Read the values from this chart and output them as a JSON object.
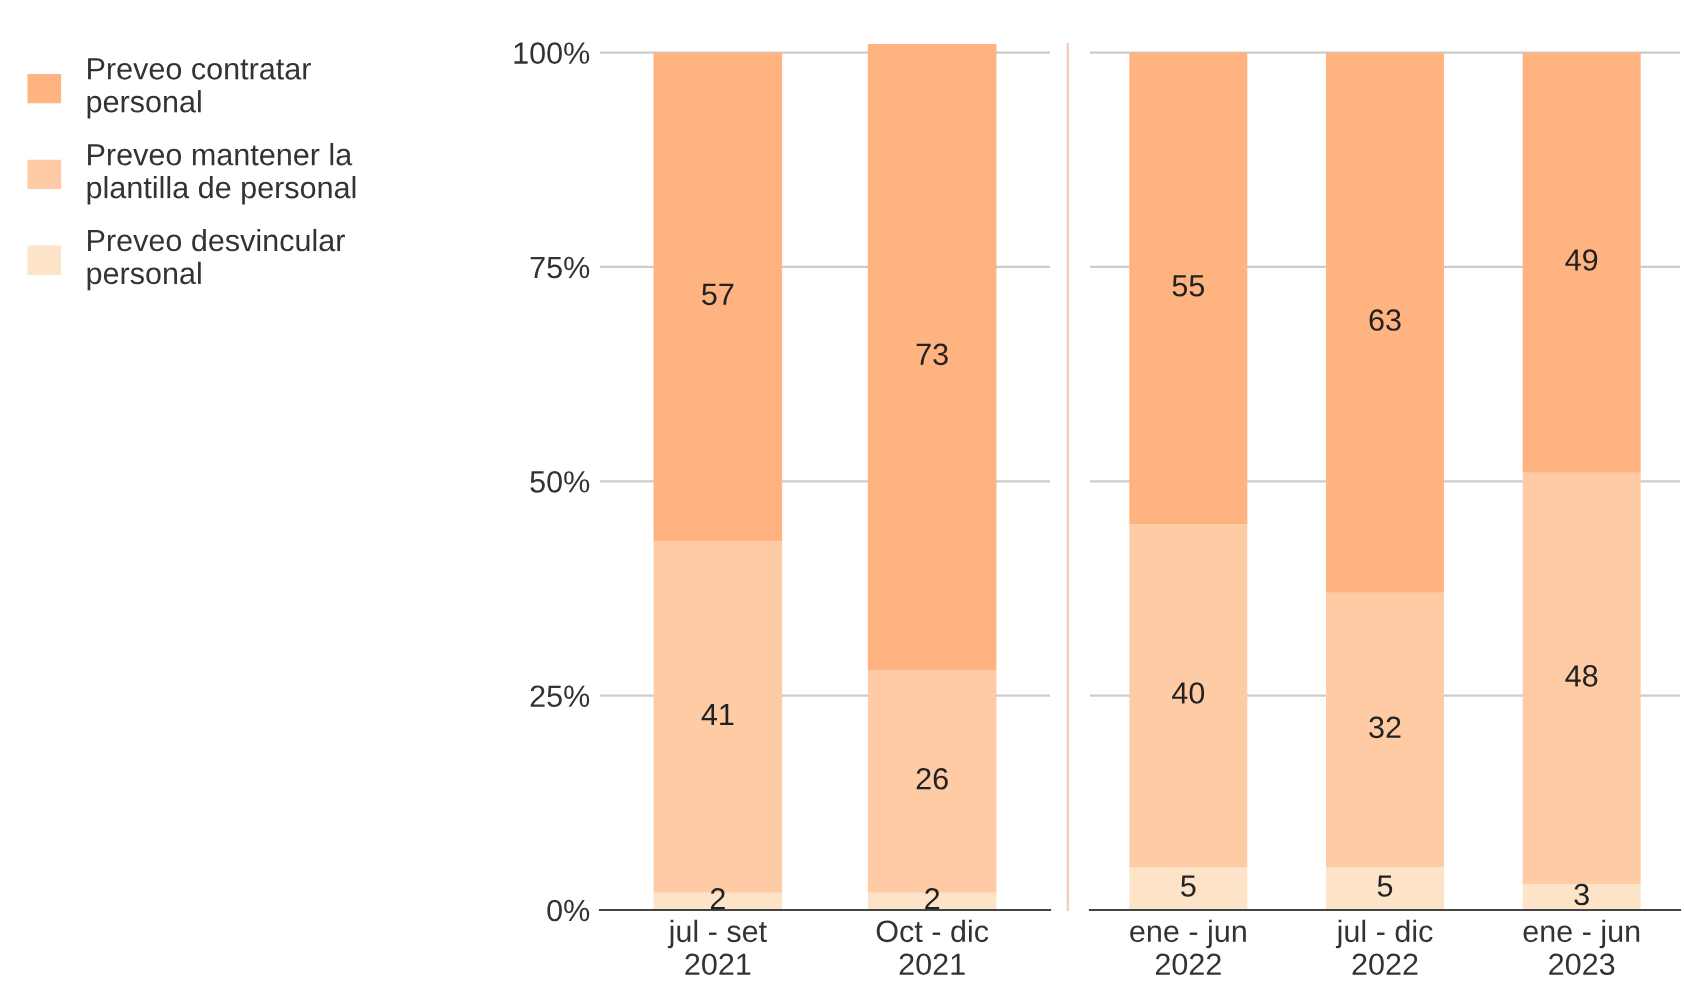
{
  "chart_data": [
    {
      "type": "bar",
      "stacked": true,
      "categories": [
        "jul - set\n2021",
        "Oct - dic\n2021"
      ],
      "ylim": [
        0,
        101
      ],
      "yticks": [
        {
          "value": 0,
          "label": "0%"
        },
        {
          "value": 25,
          "label": "25%"
        },
        {
          "value": 50,
          "label": "50%"
        },
        {
          "value": 75,
          "label": "75%"
        },
        {
          "value": 100,
          "label": "100%"
        }
      ],
      "grid": "y",
      "data_labels": true,
      "legend": "left",
      "series": [
        {
          "name": "Preveo desvincular\npersonal",
          "color": "#fde3c8",
          "values": [
            2,
            2
          ]
        },
        {
          "name": "Preveo mantener la\nplantilla de personal",
          "color": "#ffcba4",
          "values": [
            41,
            26
          ]
        },
        {
          "name": "Preveo contratar\npersonal",
          "color": "#ffb380",
          "values": [
            57,
            73
          ]
        }
      ]
    },
    {
      "type": "bar",
      "stacked": true,
      "categories": [
        "ene - jun\n2022",
        "jul - dic\n2022",
        "ene - jun\n2023"
      ],
      "ylim": [
        0,
        101
      ],
      "yticks": [
        0,
        25,
        50,
        75,
        100
      ],
      "tick_labels": "x",
      "grid": "y",
      "data_labels": true,
      "series": [
        {
          "color": "#fde3c8",
          "values": [
            5,
            5,
            3
          ]
        },
        {
          "color": "#ffcba4",
          "values": [
            40,
            32,
            48
          ]
        },
        {
          "color": "#ffb380",
          "values": [
            55,
            63,
            49
          ]
        }
      ]
    }
  ]
}
